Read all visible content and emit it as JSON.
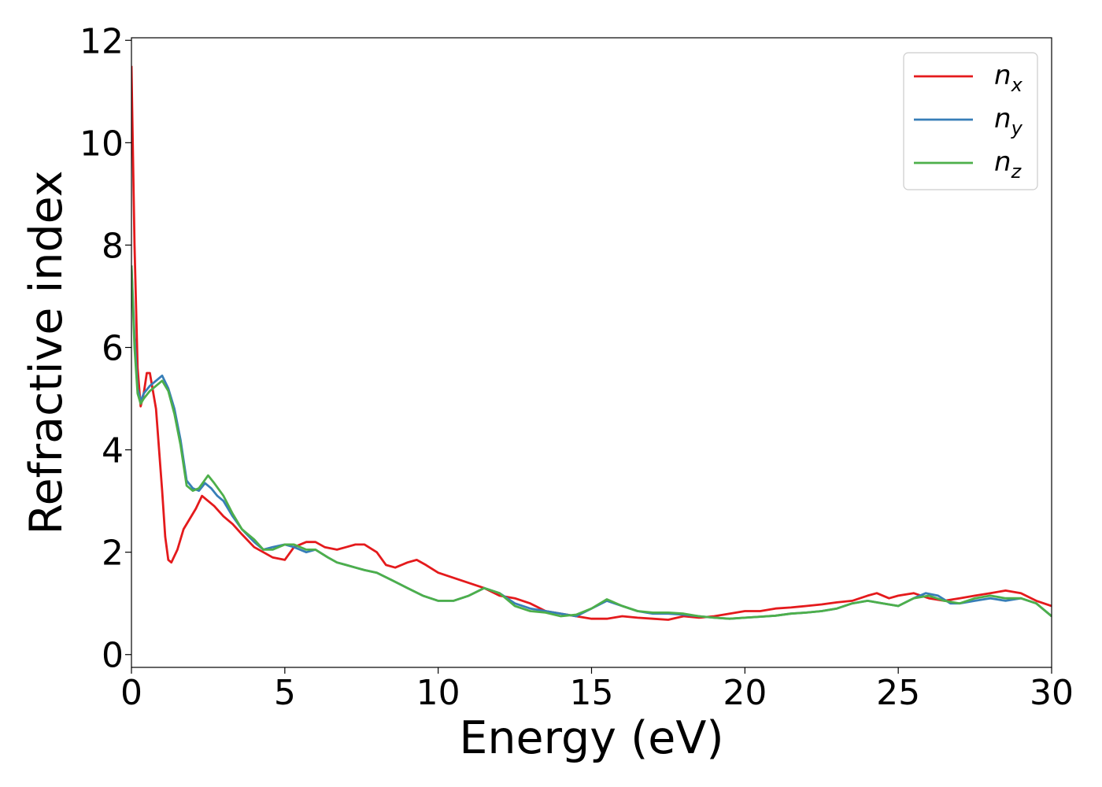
{
  "chart_data": {
    "type": "line",
    "xlabel": "Energy (eV)",
    "ylabel": "Refractive index",
    "xlim": [
      0,
      30
    ],
    "ylim": [
      -0.25,
      12.05
    ],
    "xticks": [
      "0",
      "5",
      "10",
      "15",
      "20",
      "25",
      "30"
    ],
    "yticks": [
      "0",
      "2",
      "4",
      "6",
      "8",
      "10",
      "12"
    ],
    "grid": false,
    "legend_position": "top-right",
    "series": [
      {
        "name": "n_x",
        "label_base": "n",
        "label_sub": "x",
        "color": "#e41a1c",
        "x": [
          0,
          0.1,
          0.2,
          0.3,
          0.4,
          0.5,
          0.6,
          0.8,
          1.0,
          1.1,
          1.2,
          1.3,
          1.5,
          1.7,
          1.9,
          2.1,
          2.3,
          2.5,
          2.7,
          3.0,
          3.3,
          3.6,
          4.0,
          4.3,
          4.6,
          5.0,
          5.3,
          5.7,
          6.0,
          6.3,
          6.7,
          7.0,
          7.3,
          7.6,
          8.0,
          8.3,
          8.6,
          9.0,
          9.3,
          9.6,
          10.0,
          10.5,
          11.0,
          11.5,
          12.0,
          12.5,
          13.0,
          13.5,
          14.0,
          14.5,
          15.0,
          15.5,
          16.0,
          16.5,
          17.0,
          17.5,
          18.0,
          18.5,
          19.0,
          19.5,
          20.0,
          20.5,
          21.0,
          21.5,
          22.0,
          22.5,
          23.0,
          23.5,
          24.0,
          24.3,
          24.7,
          25.0,
          25.5,
          26.0,
          26.5,
          27.0,
          27.5,
          28.0,
          28.5,
          29.0,
          29.5,
          30.0
        ],
        "y": [
          11.5,
          8.0,
          5.6,
          4.85,
          5.1,
          5.5,
          5.5,
          4.8,
          3.2,
          2.3,
          1.85,
          1.8,
          2.05,
          2.45,
          2.65,
          2.85,
          3.1,
          3.0,
          2.9,
          2.7,
          2.55,
          2.35,
          2.1,
          2.0,
          1.9,
          1.85,
          2.1,
          2.2,
          2.2,
          2.1,
          2.05,
          2.1,
          2.15,
          2.15,
          2.0,
          1.75,
          1.7,
          1.8,
          1.85,
          1.75,
          1.6,
          1.5,
          1.4,
          1.3,
          1.15,
          1.1,
          1.0,
          0.85,
          0.8,
          0.75,
          0.7,
          0.7,
          0.75,
          0.72,
          0.7,
          0.68,
          0.75,
          0.72,
          0.75,
          0.8,
          0.85,
          0.85,
          0.9,
          0.92,
          0.95,
          0.98,
          1.02,
          1.05,
          1.15,
          1.2,
          1.1,
          1.15,
          1.2,
          1.1,
          1.05,
          1.1,
          1.15,
          1.2,
          1.25,
          1.2,
          1.05,
          0.95
        ]
      },
      {
        "name": "n_y",
        "label_base": "n",
        "label_sub": "y",
        "color": "#377eb8",
        "x": [
          0,
          0.1,
          0.2,
          0.3,
          0.4,
          0.6,
          0.8,
          1.0,
          1.2,
          1.4,
          1.6,
          1.8,
          2.0,
          2.2,
          2.4,
          2.6,
          2.8,
          3.0,
          3.3,
          3.6,
          4.0,
          4.3,
          4.6,
          5.0,
          5.3,
          5.7,
          6.0,
          6.4,
          6.7,
          7.0,
          7.3,
          7.6,
          8.0,
          8.5,
          9.0,
          9.5,
          10.0,
          10.5,
          11.0,
          11.5,
          12.0,
          12.5,
          13.0,
          13.5,
          14.0,
          14.5,
          15.0,
          15.5,
          16.0,
          16.5,
          17.0,
          17.5,
          18.0,
          18.5,
          19.0,
          19.5,
          20.0,
          20.5,
          21.0,
          21.5,
          22.0,
          22.5,
          23.0,
          23.5,
          24.0,
          24.5,
          25.0,
          25.5,
          25.9,
          26.3,
          26.7,
          27.0,
          27.5,
          28.0,
          28.5,
          29.0,
          29.5,
          30.0
        ],
        "y": [
          7.6,
          6.2,
          5.2,
          4.95,
          5.1,
          5.25,
          5.35,
          5.45,
          5.2,
          4.8,
          4.2,
          3.4,
          3.25,
          3.2,
          3.35,
          3.25,
          3.1,
          3.0,
          2.7,
          2.45,
          2.2,
          2.05,
          2.1,
          2.15,
          2.1,
          2.0,
          2.05,
          1.9,
          1.8,
          1.75,
          1.7,
          1.65,
          1.6,
          1.45,
          1.3,
          1.15,
          1.05,
          1.05,
          1.15,
          1.3,
          1.2,
          1.0,
          0.9,
          0.85,
          0.8,
          0.75,
          0.9,
          1.05,
          0.95,
          0.85,
          0.8,
          0.8,
          0.78,
          0.75,
          0.72,
          0.7,
          0.72,
          0.74,
          0.76,
          0.8,
          0.82,
          0.85,
          0.9,
          1.0,
          1.05,
          1.0,
          0.95,
          1.1,
          1.2,
          1.15,
          1.0,
          1.0,
          1.05,
          1.1,
          1.05,
          1.1,
          1.0,
          0.75
        ]
      },
      {
        "name": "n_z",
        "label_base": "n",
        "label_sub": "z",
        "color": "#4daf4a",
        "x": [
          0,
          0.1,
          0.2,
          0.3,
          0.4,
          0.6,
          0.8,
          1.0,
          1.2,
          1.4,
          1.6,
          1.8,
          2.0,
          2.2,
          2.5,
          2.7,
          3.0,
          3.3,
          3.6,
          4.0,
          4.3,
          4.6,
          5.0,
          5.3,
          5.7,
          6.0,
          6.4,
          6.7,
          7.0,
          7.3,
          7.6,
          8.0,
          8.5,
          9.0,
          9.5,
          10.0,
          10.5,
          11.0,
          11.5,
          12.0,
          12.5,
          13.0,
          13.5,
          14.0,
          14.5,
          15.0,
          15.5,
          16.0,
          16.5,
          17.0,
          17.5,
          18.0,
          18.5,
          19.0,
          19.5,
          20.0,
          20.5,
          21.0,
          21.5,
          22.0,
          22.5,
          23.0,
          23.5,
          24.0,
          24.5,
          25.0,
          25.5,
          26.0,
          26.5,
          27.0,
          27.5,
          28.0,
          28.5,
          29.0,
          29.5,
          30.0
        ],
        "y": [
          7.6,
          6.0,
          5.1,
          4.9,
          5.0,
          5.15,
          5.25,
          5.35,
          5.15,
          4.7,
          4.1,
          3.3,
          3.2,
          3.25,
          3.5,
          3.35,
          3.1,
          2.75,
          2.45,
          2.25,
          2.05,
          2.05,
          2.15,
          2.15,
          2.05,
          2.05,
          1.9,
          1.8,
          1.75,
          1.7,
          1.65,
          1.6,
          1.45,
          1.3,
          1.15,
          1.05,
          1.05,
          1.15,
          1.3,
          1.2,
          0.95,
          0.85,
          0.82,
          0.75,
          0.78,
          0.9,
          1.08,
          0.95,
          0.85,
          0.82,
          0.82,
          0.8,
          0.75,
          0.72,
          0.7,
          0.72,
          0.74,
          0.76,
          0.8,
          0.82,
          0.85,
          0.9,
          1.0,
          1.05,
          1.0,
          0.95,
          1.1,
          1.15,
          1.05,
          1.0,
          1.1,
          1.15,
          1.1,
          1.1,
          1.0,
          0.75
        ]
      }
    ]
  }
}
